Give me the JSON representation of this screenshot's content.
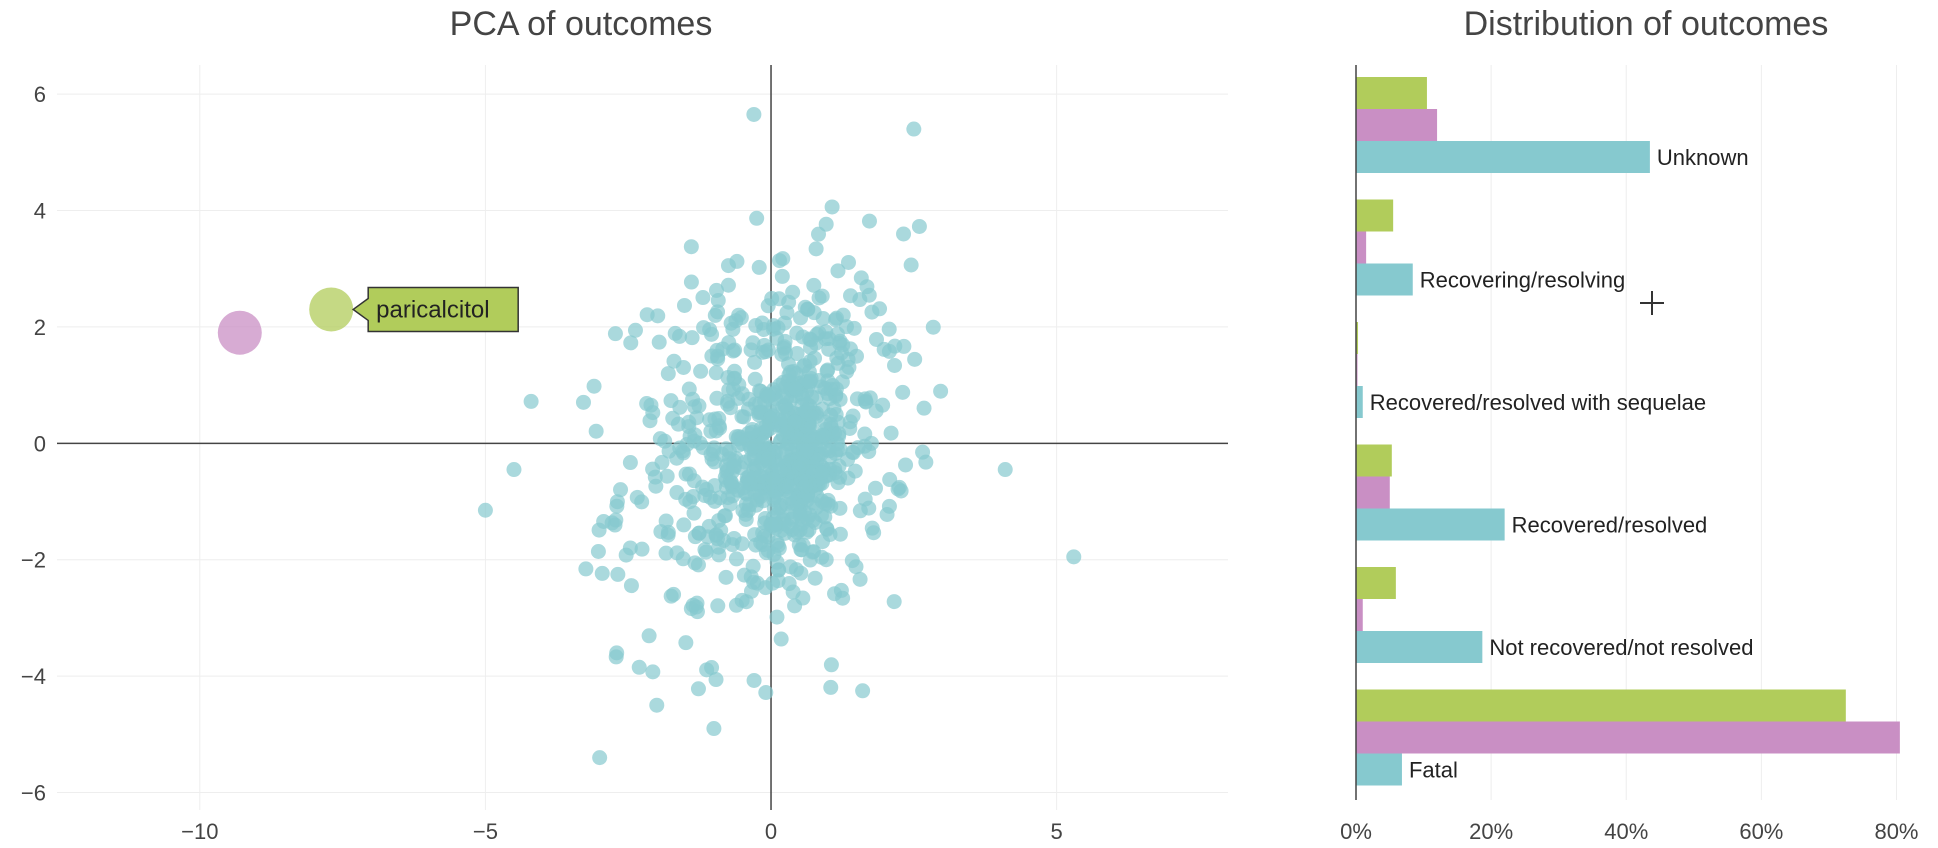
{
  "chart_data": [
    {
      "type": "scatter",
      "title": "PCA of outcomes",
      "xlabel": "",
      "ylabel": "",
      "xlim": [
        -12.5,
        8
      ],
      "ylim": [
        -6.3,
        6.5
      ],
      "xticks": [
        -10,
        -5,
        0,
        5
      ],
      "xtick_labels": [
        "−10",
        "−5",
        "0",
        "5"
      ],
      "yticks": [
        -6,
        -4,
        -2,
        0,
        2,
        4,
        6
      ],
      "ytick_labels": [
        "−6",
        "−4",
        "−2",
        "0",
        "2",
        "4",
        "6"
      ],
      "grid": true,
      "colors": {
        "drugs": "#86c9cf",
        "highlight_green": "#b1cc5b",
        "highlight_pink": "#c98fc4"
      },
      "highlighted": [
        {
          "x": -7.7,
          "y": 2.3,
          "color": "#b1cc5b",
          "label": "paricalcitol"
        },
        {
          "x": -9.3,
          "y": 1.9,
          "color": "#c98fc4"
        }
      ],
      "notable_points": [
        {
          "x": -0.3,
          "y": 5.65
        },
        {
          "x": 2.5,
          "y": 5.4
        },
        {
          "x": 5.3,
          "y": -1.95
        },
        {
          "x": 4.1,
          "y": -0.45
        },
        {
          "x": -4.2,
          "y": 0.72
        },
        {
          "x": -5.0,
          "y": -1.15
        },
        {
          "x": -4.5,
          "y": -0.45
        },
        {
          "x": -3.0,
          "y": -5.4
        },
        {
          "x": -1.0,
          "y": -4.9
        },
        {
          "x": -2.0,
          "y": -4.5
        }
      ],
      "cloud_count": 850
    },
    {
      "type": "bar",
      "orientation": "horizontal",
      "title": "Distribution of outcomes",
      "categories": [
        "Unknown",
        "Recovering/resolving",
        "Recovered/resolved with sequelae",
        "Recovered/resolved",
        "Not recovered/not resolved",
        "Fatal"
      ],
      "series": [
        {
          "color": "#b1cc5b",
          "values": [
            10.5,
            5.5,
            0.3,
            5.3,
            5.9,
            72.5
          ]
        },
        {
          "color": "#c98fc4",
          "values": [
            12.0,
            1.5,
            0.2,
            5.0,
            1.0,
            80.5
          ]
        },
        {
          "color": "#86c9cf",
          "values": [
            43.5,
            8.4,
            1.0,
            22.0,
            18.7,
            6.8
          ]
        }
      ],
      "xlim": [
        0,
        82
      ],
      "xticks": [
        0,
        20,
        40,
        60,
        80
      ],
      "xtick_labels": [
        "0%",
        "20%",
        "40%",
        "60%",
        "80%"
      ],
      "grid": true
    }
  ]
}
